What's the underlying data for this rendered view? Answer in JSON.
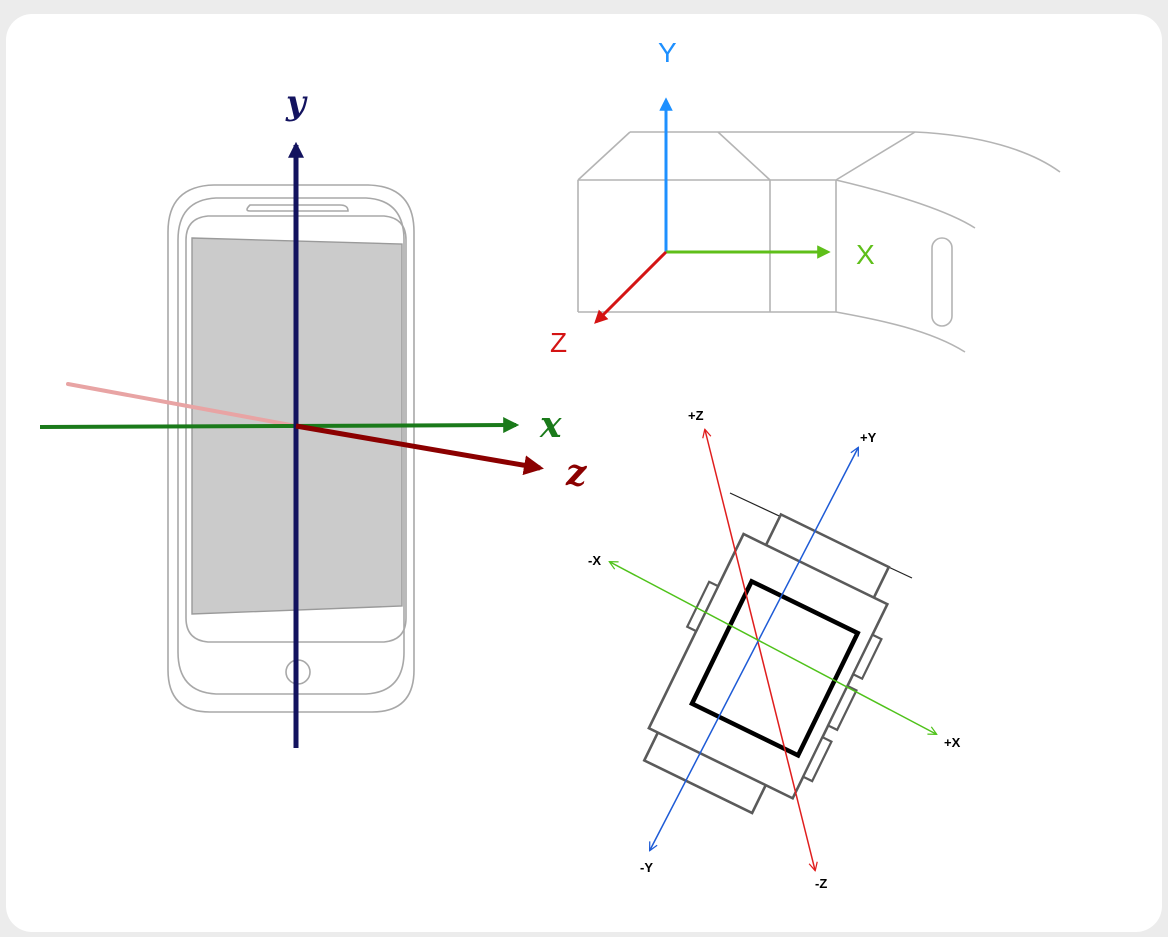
{
  "phone_axes": {
    "y_label": "y",
    "x_label": "x",
    "z_label": "z",
    "colors": {
      "y": "#13135f",
      "x": "#1a7a1a",
      "z": "#8b0000",
      "z_back": "#e8a4a4"
    }
  },
  "glass_axes": {
    "y_label": "Y",
    "x_label": "X",
    "z_label": "Z",
    "colors": {
      "y": "#1e90ff",
      "x": "#5fbf1a",
      "z": "#d41414"
    }
  },
  "watch_axes": {
    "pos_z_label": "+Z",
    "neg_z_label": "-Z",
    "pos_y_label": "+Y",
    "neg_y_label": "-Y",
    "pos_x_label": "+X",
    "neg_x_label": "-X",
    "colors": {
      "z": "#e01e1e",
      "y": "#1e5bd6",
      "x": "#4fc21a"
    }
  }
}
